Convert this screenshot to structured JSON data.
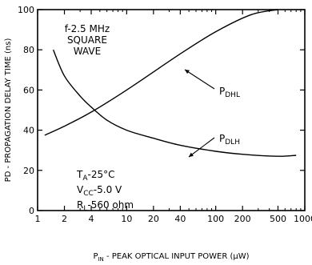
{
  "chart_data": {
    "type": "line",
    "ylabel": "PD - PROPAGATION DELAY TIME (ns)",
    "xlabel": {
      "symbol": "P",
      "subscript": "IN",
      "text": " - PEAK OPTICAL INPUT POWER (μW)"
    },
    "x_scale": "log",
    "xlim": [
      1,
      1000
    ],
    "ylim": [
      0,
      100
    ],
    "x_ticks": [
      {
        "value": 1,
        "label": "1"
      },
      {
        "value": 2,
        "label": "2"
      },
      {
        "value": 4,
        "label": "4"
      },
      {
        "value": 10,
        "label": "10"
      },
      {
        "value": 20,
        "label": "20"
      },
      {
        "value": 40,
        "label": "40"
      },
      {
        "value": 100,
        "label": "100"
      },
      {
        "value": 200,
        "label": "200"
      },
      {
        "value": 500,
        "label": "500"
      },
      {
        "value": 1000,
        "label": "1000"
      }
    ],
    "x_minor_ticks": [
      3,
      5,
      6,
      7,
      8,
      9,
      30,
      50,
      60,
      70,
      80,
      90,
      300,
      400,
      600,
      700,
      800,
      900
    ],
    "y_ticks": [
      {
        "value": 0,
        "label": "0"
      },
      {
        "value": 20,
        "label": "20"
      },
      {
        "value": 40,
        "label": "40"
      },
      {
        "value": 60,
        "label": "60"
      },
      {
        "value": 80,
        "label": "80"
      },
      {
        "value": 100,
        "label": "100"
      }
    ],
    "grid": false,
    "series": [
      {
        "name": "PDHL",
        "label_main": "P",
        "label_sub": "DHL",
        "x": [
          1.2,
          2,
          4,
          10,
          40,
          100,
          250,
          500
        ],
        "y": [
          37.5,
          42,
          49,
          60,
          78,
          89,
          97.5,
          100
        ]
      },
      {
        "name": "PDLH",
        "label_main": "P",
        "label_sub": "DLH",
        "x": [
          1.5,
          2,
          3,
          4,
          6,
          10,
          20,
          40,
          100,
          200,
          500,
          800
        ],
        "y": [
          80,
          67,
          57,
          51.5,
          45,
          40,
          36,
          32.5,
          29.5,
          28,
          27,
          27.5
        ]
      }
    ],
    "annotations": {
      "conditions_top": [
        "f-2.5 MHz",
        "SQUARE",
        "WAVE"
      ],
      "ta": {
        "main": "T",
        "sub": "A",
        "rest": "-25°C"
      },
      "vcc": {
        "main": "V",
        "sub": "CC",
        "rest": "-5.0  V"
      },
      "rl": {
        "main": "R",
        "sub": "L",
        "rest": "-560  ohm"
      }
    }
  }
}
